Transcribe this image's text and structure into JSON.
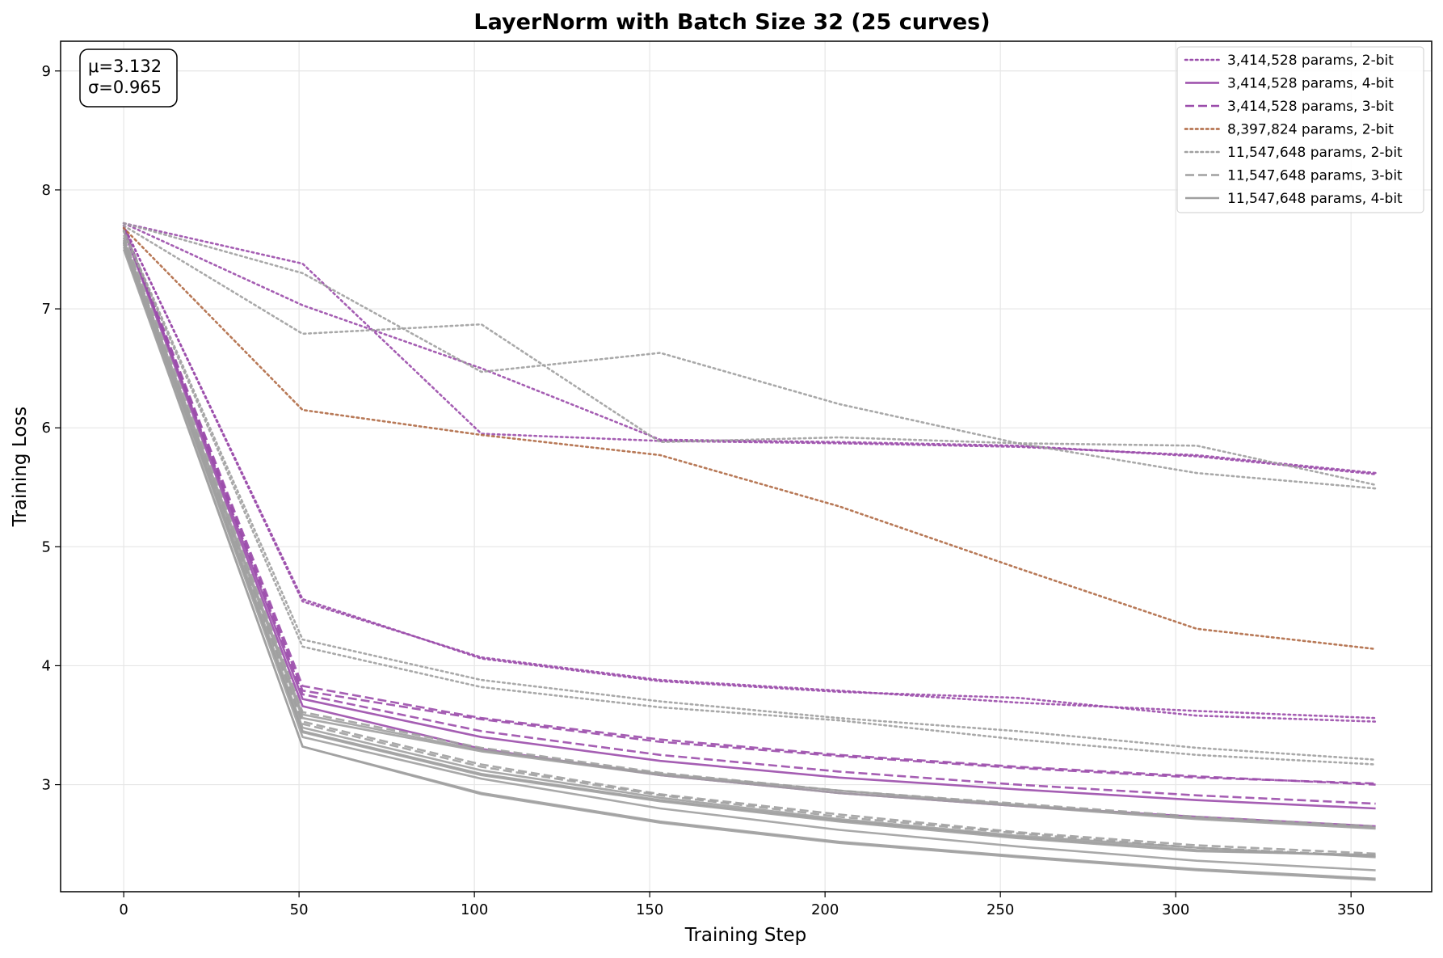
{
  "chart_data": {
    "type": "line",
    "title": "LayerNorm with Batch Size 32 (25 curves)",
    "xlabel": "Training Step",
    "ylabel": "Training Loss",
    "xlim": [
      -18,
      373
    ],
    "ylim": [
      2.1,
      9.25
    ],
    "xticks": [
      0,
      50,
      100,
      150,
      200,
      250,
      300,
      350
    ],
    "yticks": [
      3,
      4,
      5,
      6,
      7,
      8,
      9
    ],
    "grid": true,
    "legend_position": "top-right",
    "stats_box": {
      "line1": "μ=3.132",
      "line2": "σ=0.965"
    },
    "colors": {
      "purple": "#9b4dab",
      "brown": "#b06a45",
      "gray": "#a0a0a0"
    },
    "x": [
      0,
      51,
      102,
      153,
      204,
      255,
      306,
      357
    ],
    "legend": [
      {
        "label": "3,414,528 params, 2-bit",
        "color": "#9b4dab",
        "dash": "dotted"
      },
      {
        "label": "3,414,528 params, 4-bit",
        "color": "#9b4dab",
        "dash": "solid"
      },
      {
        "label": "3,414,528 params, 3-bit",
        "color": "#9b4dab",
        "dash": "dashed"
      },
      {
        "label": "8,397,824 params, 2-bit",
        "color": "#b06a45",
        "dash": "dotted"
      },
      {
        "label": "11,547,648 params, 2-bit",
        "color": "#a0a0a0",
        "dash": "dotted"
      },
      {
        "label": "11,547,648 params, 3-bit",
        "color": "#a0a0a0",
        "dash": "dashed"
      },
      {
        "label": "11,547,648 params, 4-bit",
        "color": "#a0a0a0",
        "dash": "solid"
      }
    ],
    "series": [
      {
        "color": "#9b4dab",
        "dash": "dotted",
        "values": [
          7.72,
          7.38,
          5.95,
          5.89,
          5.87,
          5.84,
          5.77,
          5.62
        ]
      },
      {
        "color": "#9b4dab",
        "dash": "dotted",
        "values": [
          7.72,
          7.03,
          6.5,
          5.9,
          5.88,
          5.85,
          5.76,
          5.61
        ]
      },
      {
        "color": "#9b4dab",
        "dash": "dotted",
        "values": [
          7.7,
          4.56,
          4.06,
          3.87,
          3.78,
          3.73,
          3.58,
          3.53
        ]
      },
      {
        "color": "#9b4dab",
        "dash": "dotted",
        "values": [
          7.7,
          4.54,
          4.07,
          3.88,
          3.79,
          3.69,
          3.62,
          3.56
        ]
      },
      {
        "color": "#9b4dab",
        "dash": "solid",
        "values": [
          7.68,
          3.72,
          3.4,
          3.2,
          3.06,
          2.96,
          2.87,
          2.8
        ]
      },
      {
        "color": "#9b4dab",
        "dash": "solid",
        "values": [
          7.66,
          3.66,
          3.3,
          3.08,
          2.93,
          2.82,
          2.73,
          2.65
        ]
      },
      {
        "color": "#9b4dab",
        "dash": "dashed",
        "values": [
          7.69,
          3.83,
          3.56,
          3.38,
          3.25,
          3.15,
          3.07,
          3.0
        ]
      },
      {
        "color": "#9b4dab",
        "dash": "dashed",
        "values": [
          7.69,
          3.79,
          3.55,
          3.36,
          3.24,
          3.14,
          3.06,
          3.01
        ]
      },
      {
        "color": "#9b4dab",
        "dash": "dashed",
        "values": [
          7.67,
          3.76,
          3.45,
          3.25,
          3.11,
          3.0,
          2.91,
          2.84
        ]
      },
      {
        "color": "#b06a45",
        "dash": "dotted",
        "values": [
          7.68,
          6.15,
          5.94,
          5.77,
          5.34,
          4.82,
          4.31,
          4.14
        ]
      },
      {
        "color": "#a0a0a0",
        "dash": "dotted",
        "values": [
          7.72,
          7.3,
          6.47,
          6.63,
          6.2,
          5.87,
          5.62,
          5.49
        ]
      },
      {
        "color": "#a0a0a0",
        "dash": "dotted",
        "values": [
          7.7,
          6.79,
          6.87,
          5.88,
          5.92,
          5.87,
          5.85,
          5.52
        ]
      },
      {
        "color": "#a0a0a0",
        "dash": "dotted",
        "values": [
          7.66,
          4.22,
          3.88,
          3.7,
          3.56,
          3.45,
          3.31,
          3.21
        ]
      },
      {
        "color": "#a0a0a0",
        "dash": "dotted",
        "values": [
          7.65,
          4.16,
          3.82,
          3.65,
          3.54,
          3.38,
          3.25,
          3.17
        ]
      },
      {
        "color": "#a0a0a0",
        "dash": "dashed",
        "values": [
          7.62,
          3.61,
          3.31,
          3.1,
          2.95,
          2.84,
          2.73,
          2.65
        ]
      },
      {
        "color": "#a0a0a0",
        "dash": "dashed",
        "values": [
          7.6,
          3.53,
          3.17,
          2.92,
          2.75,
          2.6,
          2.49,
          2.42
        ]
      },
      {
        "color": "#a0a0a0",
        "dash": "dashed",
        "values": [
          7.6,
          3.51,
          3.15,
          2.91,
          2.73,
          2.59,
          2.47,
          2.4
        ]
      },
      {
        "color": "#a0a0a0",
        "dash": "solid",
        "values": [
          7.58,
          3.59,
          3.29,
          3.09,
          2.95,
          2.83,
          2.72,
          2.64
        ]
      },
      {
        "color": "#a0a0a0",
        "dash": "solid",
        "values": [
          7.56,
          3.56,
          3.28,
          3.08,
          2.93,
          2.82,
          2.71,
          2.63
        ]
      },
      {
        "color": "#a0a0a0",
        "dash": "solid",
        "values": [
          7.56,
          3.45,
          3.09,
          2.87,
          2.7,
          2.56,
          2.45,
          2.4
        ]
      },
      {
        "color": "#a0a0a0",
        "dash": "solid",
        "values": [
          7.54,
          3.44,
          3.08,
          2.86,
          2.69,
          2.55,
          2.44,
          2.41
        ]
      },
      {
        "color": "#a0a0a0",
        "dash": "solid",
        "values": [
          7.52,
          3.32,
          2.93,
          2.69,
          2.52,
          2.4,
          2.29,
          2.21
        ]
      },
      {
        "color": "#a0a0a0",
        "dash": "solid",
        "values": [
          7.5,
          3.32,
          2.92,
          2.68,
          2.51,
          2.39,
          2.28,
          2.2
        ]
      },
      {
        "color": "#a0a0a0",
        "dash": "solid",
        "values": [
          7.55,
          3.4,
          3.05,
          2.8,
          2.62,
          2.48,
          2.36,
          2.28
        ]
      },
      {
        "color": "#a0a0a0",
        "dash": "solid",
        "values": [
          7.57,
          3.48,
          3.12,
          2.89,
          2.71,
          2.57,
          2.47,
          2.39
        ]
      }
    ]
  }
}
